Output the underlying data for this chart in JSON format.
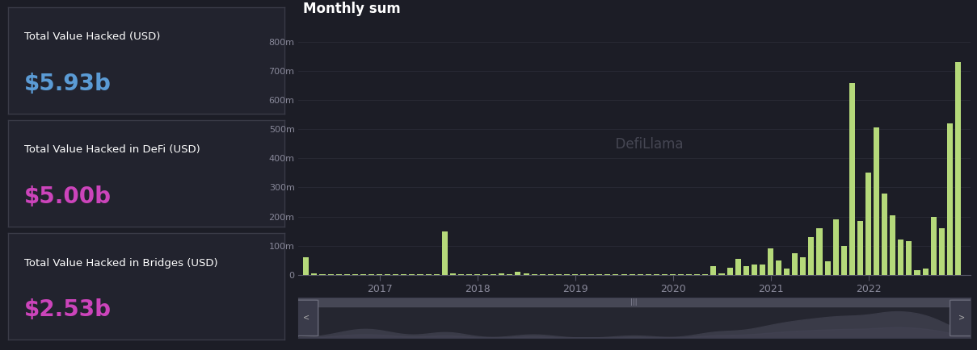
{
  "bg_color": "#1c1d26",
  "panel_color": "#22232e",
  "border_color": "#3a3b47",
  "stat_panels": [
    {
      "label": "Total Value Hacked (USD)",
      "value": "$5.93b",
      "value_color": "#5b9bd5"
    },
    {
      "label": "Total Value Hacked in DeFi (USD)",
      "value": "$5.00b",
      "value_color": "#cc44bb"
    },
    {
      "label": "Total Value Hacked in Bridges (USD)",
      "value": "$2.53b",
      "value_color": "#cc44bb"
    }
  ],
  "chart_title": "Monthly sum",
  "chart_title_color": "#ffffff",
  "chart_bg_color": "#1c1d26",
  "bar_color": "#b5d97a",
  "bar_width": 0.7,
  "values": [
    60,
    5,
    2,
    1,
    1,
    2,
    1,
    1,
    2,
    1,
    2,
    1,
    1,
    2,
    2,
    1,
    1,
    150,
    5,
    3,
    2,
    3,
    2,
    2,
    5,
    3,
    10,
    5,
    2,
    1,
    1,
    1,
    1,
    2,
    2,
    1,
    2,
    1,
    1,
    1,
    3,
    1,
    1,
    1,
    1,
    1,
    3,
    2,
    2,
    2,
    30,
    5,
    25,
    55,
    30,
    35,
    35,
    90,
    50,
    20,
    75,
    60,
    130,
    160,
    45,
    190,
    100,
    660,
    185,
    350,
    505,
    280,
    205,
    120,
    115,
    15,
    20,
    200,
    160,
    520,
    730
  ],
  "ytick_labels": [
    "0",
    "100m",
    "200m",
    "300m",
    "400m",
    "500m",
    "600m",
    "700m",
    "800m"
  ],
  "ytick_values": [
    0,
    100,
    200,
    300,
    400,
    500,
    600,
    700,
    800
  ],
  "year_ticks": [
    {
      "label": "2017",
      "month_index": 9
    },
    {
      "label": "2018",
      "month_index": 21
    },
    {
      "label": "2019",
      "month_index": 33
    },
    {
      "label": "2020",
      "month_index": 45
    },
    {
      "label": "2021",
      "month_index": 57
    },
    {
      "label": "2022",
      "month_index": 69
    }
  ],
  "axis_color": "#555566",
  "tick_color": "#888899",
  "grid_color": "#2a2b36",
  "watermark_text": "  DefiLlama",
  "watermark_color": "#4a4b58"
}
